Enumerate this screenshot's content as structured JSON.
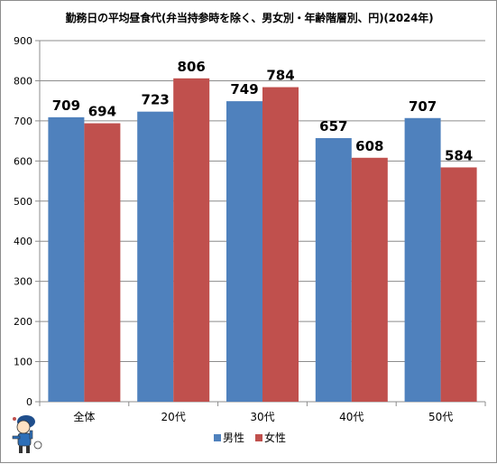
{
  "chart_data": {
    "type": "bar",
    "title": "勤務日の平均昼食代(弁当持参時を除く、男女別・年齢階層別、円)(2024年)",
    "categories": [
      "全体",
      "20代",
      "30代",
      "40代",
      "50代"
    ],
    "series": [
      {
        "name": "男性",
        "values": [
          709,
          723,
          749,
          657,
          707
        ],
        "color": "#4f81bd"
      },
      {
        "name": "女性",
        "values": [
          694,
          806,
          784,
          608,
          584
        ],
        "color": "#c0504d"
      }
    ],
    "ylim": [
      0,
      900
    ],
    "yticks": [
      0,
      100,
      200,
      300,
      400,
      500,
      600,
      700,
      800,
      900
    ],
    "grid": true,
    "legend": "bottom"
  }
}
